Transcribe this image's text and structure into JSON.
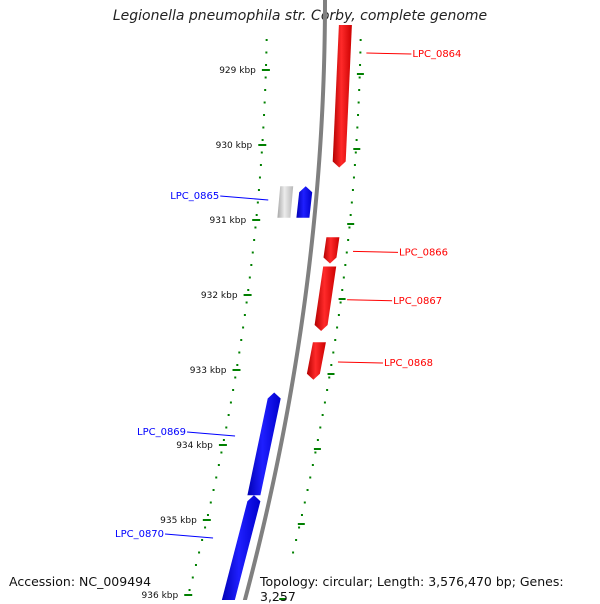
{
  "title": "Legionella pneumophila str. Corby, complete genome",
  "footer": {
    "accession": "Accession: NC_009494",
    "summary": "Topology: circular; Length: 3,576,470 bp; Genes: 3,257"
  },
  "scale": {
    "ticks": [
      {
        "label": "929 kbp",
        "kbp": 929
      },
      {
        "label": "930 kbp",
        "kbp": 930
      },
      {
        "label": "931 kbp",
        "kbp": 931
      },
      {
        "label": "932 kbp",
        "kbp": 932
      },
      {
        "label": "933 kbp",
        "kbp": 933
      },
      {
        "label": "934 kbp",
        "kbp": 934
      },
      {
        "label": "935 kbp",
        "kbp": 935
      },
      {
        "label": "936 kbp",
        "kbp": 936
      }
    ]
  },
  "colors": {
    "forward": "#ff0000",
    "reverse": "#0000ff",
    "other": "#c0c0c0",
    "backbone": "#808080",
    "ruler": "#008000"
  },
  "genes": [
    {
      "label": "LPC_0864",
      "strand": "forward",
      "start_kbp": 928.4,
      "end_kbp": 930.3
    },
    {
      "label": "LPC_0865",
      "strand": "reverse",
      "start_kbp": 930.55,
      "end_kbp": 930.97
    },
    {
      "label": "",
      "strand": "other",
      "start_kbp": 930.55,
      "end_kbp": 930.97
    },
    {
      "label": "LPC_0866",
      "strand": "forward",
      "start_kbp": 931.23,
      "end_kbp": 931.58
    },
    {
      "label": "LPC_0867",
      "strand": "forward",
      "start_kbp": 931.62,
      "end_kbp": 932.48
    },
    {
      "label": "LPC_0868",
      "strand": "forward",
      "start_kbp": 932.63,
      "end_kbp": 933.13
    },
    {
      "label": "LPC_0869",
      "strand": "reverse",
      "start_kbp": 933.3,
      "end_kbp": 934.67
    },
    {
      "label": "LPC_0870",
      "strand": "reverse",
      "start_kbp": 934.67,
      "end_kbp": 936.1
    }
  ]
}
